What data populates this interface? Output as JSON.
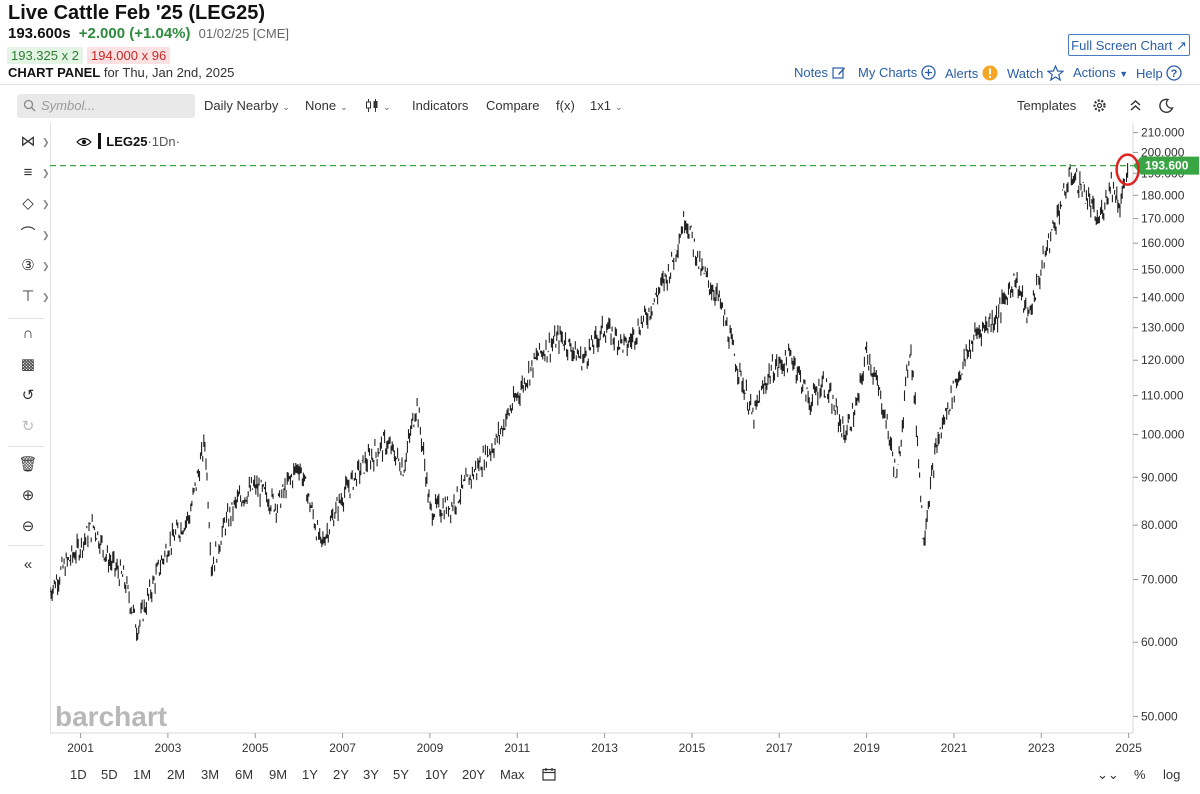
{
  "header": {
    "title": "Live Cattle Feb '25 (LEG25)",
    "last_price": "193.600s",
    "change": "+2.000 (+1.04%)",
    "quote_date": "01/02/25 [CME]",
    "bid": "193.325 x 2",
    "ask": "194.000 x 96",
    "panel_label": "CHART PANEL",
    "panel_date": "for Thu, Jan 2nd, 2025",
    "fullscreen_label": "Full Screen Chart"
  },
  "topnav": {
    "notes": "Notes",
    "my_charts": "My Charts",
    "alerts": "Alerts",
    "watch": "Watch",
    "actions": "Actions",
    "help": "Help"
  },
  "toolbar": {
    "symbol_placeholder": "Symbol...",
    "aggregation": "Daily Nearby",
    "study": "None",
    "indicators": "Indicators",
    "compare": "Compare",
    "fx": "f(x)",
    "layout": "1x1",
    "templates": "Templates"
  },
  "legend": {
    "symbol": "LEG25",
    "interval": "·1Dn·"
  },
  "watermark": "barchart",
  "ranges": [
    "1D",
    "5D",
    "1M",
    "2M",
    "3M",
    "6M",
    "9M",
    "1Y",
    "2Y",
    "3Y",
    "5Y",
    "10Y",
    "20Y",
    "Max"
  ],
  "bottom": {
    "percent": "%",
    "log": "log"
  },
  "colors": {
    "accent": "#2a5ea8",
    "up": "#2e8b3e",
    "last_price_line": "#3aa545",
    "highlight_circle": "#e02424",
    "candles": "#222222"
  },
  "icons": {
    "crosshair": "crosshair-icon",
    "lines": "line-tools-icon",
    "shapes": "shape-tools-icon",
    "arc": "arc-tools-icon",
    "count": "count-3-icon",
    "fib": "fibonacci-icon",
    "magnet": "magnet-icon",
    "lock": "lock-icon",
    "undo": "undo-icon",
    "redo": "redo-icon",
    "trash": "trash-icon",
    "zoom_in": "zoom-in-icon",
    "zoom_out": "zoom-out-icon",
    "collapse": "double-chevron-left-icon"
  },
  "chart_data": {
    "type": "line",
    "scale": "log",
    "x_tick_labels": [
      "2001",
      "2003",
      "2005",
      "2007",
      "2009",
      "2011",
      "2013",
      "2015",
      "2017",
      "2019",
      "2021",
      "2023",
      "2025"
    ],
    "y_tick_labels": [
      "210.000",
      "200.000",
      "190.000",
      "180.000",
      "170.000",
      "160.000",
      "150.000",
      "140.000",
      "130.000",
      "120.000",
      "110.000",
      "100.000",
      "90.000",
      "80.000",
      "70.000",
      "60.000",
      "50.000"
    ],
    "ylim": [
      48,
      215
    ],
    "xlim": [
      2000.3,
      2025.1
    ],
    "last_price_label": "193.600",
    "last_price": 193.6,
    "series": [
      {
        "x": [
          2000.3,
          2000.6,
          2001.0,
          2001.3,
          2001.6,
          2002.0,
          2002.3,
          2002.6,
          2003.0,
          2003.5,
          2003.85,
          2004.0,
          2004.3,
          2004.6,
          2005.0,
          2005.5,
          2006.0,
          2006.5,
          2007.0,
          2007.5,
          2008.0,
          2008.4,
          2008.7,
          2009.0,
          2009.5,
          2010.0,
          2010.5,
          2011.0,
          2011.5,
          2012.0,
          2012.5,
          2013.0,
          2013.5,
          2014.0,
          2014.5,
          2014.85,
          2015.2,
          2015.6,
          2016.0,
          2016.4,
          2016.8,
          2017.3,
          2017.7,
          2018.0,
          2018.5,
          2018.8,
          2019.0,
          2019.4,
          2019.7,
          2020.0,
          2020.3,
          2020.6,
          2021.0,
          2021.5,
          2022.0,
          2022.4,
          2022.7,
          2023.0,
          2023.3,
          2023.7,
          2024.0,
          2024.3,
          2024.6,
          2024.8,
          2025.0
        ],
        "y": [
          68,
          72,
          76,
          80,
          74,
          70,
          62,
          68,
          76,
          82,
          98,
          72,
          80,
          85,
          88,
          84,
          93,
          76,
          86,
          93,
          98,
          92,
          108,
          83,
          84,
          91,
          98,
          110,
          122,
          127,
          120,
          130,
          124,
          135,
          150,
          171,
          150,
          140,
          120,
          104,
          117,
          121,
          108,
          114,
          100,
          108,
          123,
          106,
          89,
          125,
          77,
          97,
          112,
          128,
          134,
          147,
          133,
          150,
          168,
          190,
          181,
          168,
          186,
          176,
          193
        ]
      }
    ]
  }
}
